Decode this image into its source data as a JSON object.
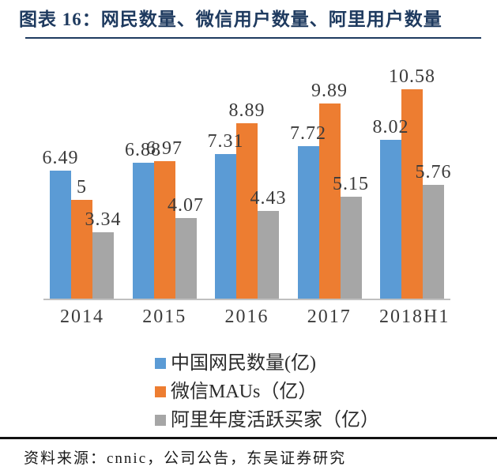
{
  "header": {
    "title": "图表 16：网民数量、微信用户数量、阿里用户数量",
    "title_color": "#1e3a5f"
  },
  "chart_data": {
    "type": "bar",
    "title": "图表 16：网民数量、微信用户数量、阿里用户数量",
    "categories": [
      "2014",
      "2015",
      "2016",
      "2017",
      "2018H1"
    ],
    "series": [
      {
        "slug": "china-netizens",
        "name": "中国网民数量(亿)",
        "color": "#5b9bd5",
        "values": [
          6.49,
          6.88,
          7.31,
          7.72,
          8.02
        ]
      },
      {
        "slug": "wechat-maus",
        "name": "微信MAUs（亿）",
        "color": "#ed7d31",
        "values": [
          5,
          6.97,
          8.89,
          9.89,
          10.58
        ]
      },
      {
        "slug": "alibaba-active-buyers",
        "name": "阿里年度活跃买家（亿）",
        "color": "#a6a6a6",
        "values": [
          3.34,
          4.07,
          4.43,
          5.15,
          5.76
        ]
      }
    ],
    "xlabel": "",
    "ylabel": "",
    "ylim": [
      0,
      11
    ],
    "grid": false,
    "value_labels_shown": true,
    "legend_position": "bottom",
    "axis_line_color": "#c0c0c0"
  },
  "footer": {
    "source": "资料来源：cnnic，公司公告，东吴证券研究"
  }
}
